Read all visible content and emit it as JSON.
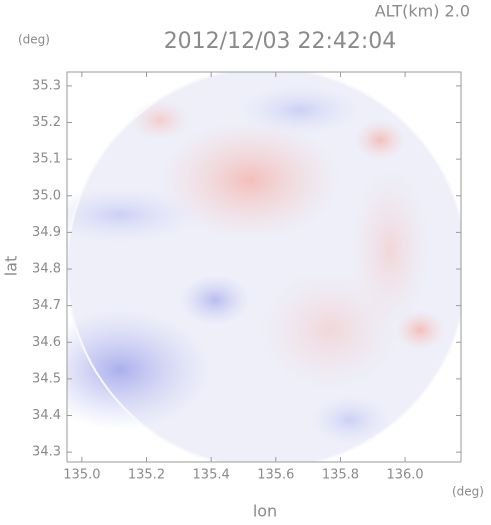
{
  "chart_data": {
    "type": "heatmap",
    "title": "2012/12/03 22:42:04",
    "subtitle": "ALT(km) 2.0",
    "x_label": "lon",
    "y_label": "lat",
    "x_unit": "(deg)",
    "y_unit": "(deg)",
    "xlim": [
      134.954,
      136.173
    ],
    "ylim": [
      34.273,
      35.338
    ],
    "xticks": [
      {
        "value": 135,
        "label": "135.0"
      },
      135.2,
      135.4,
      135.6,
      135.8,
      {
        "value": 136,
        "label": "136.0"
      }
    ],
    "yticks": [
      34.3,
      34.4,
      34.5,
      34.6,
      34.7,
      34.8,
      34.9,
      {
        "value": 35,
        "label": "35.0"
      },
      35.1,
      35.2,
      35.3
    ]
  }
}
